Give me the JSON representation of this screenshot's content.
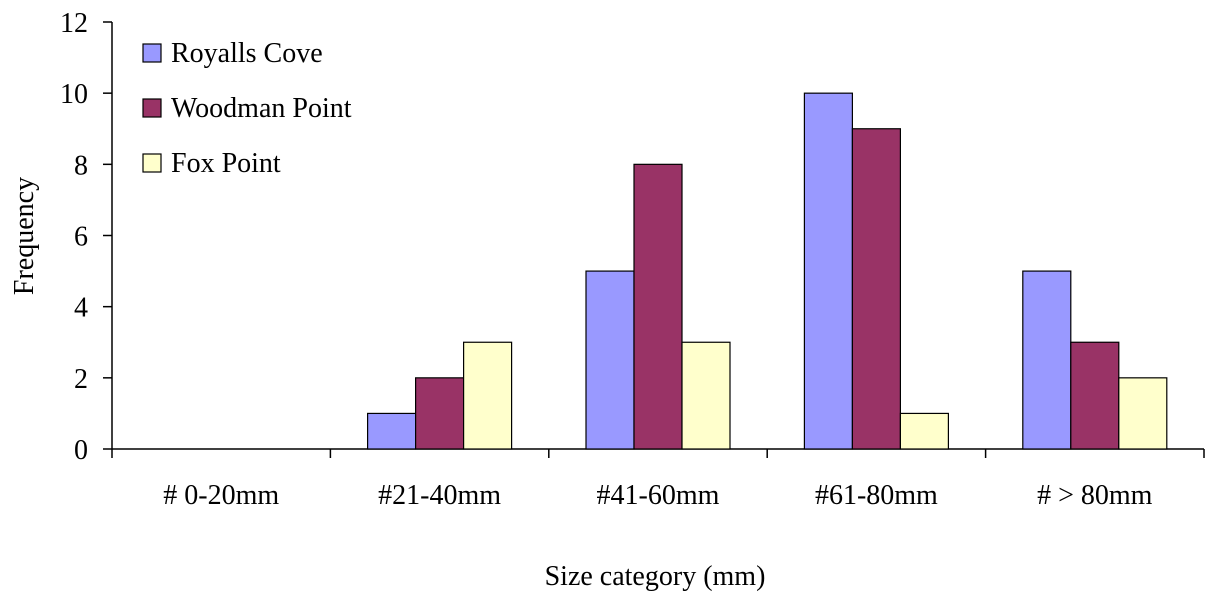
{
  "chart_data": {
    "type": "bar",
    "title": "",
    "xlabel": "Size category (mm)",
    "ylabel": "Frequency",
    "categories": [
      "# 0-20mm",
      "#21-40mm",
      "#41-60mm",
      "#61-80mm",
      "# > 80mm"
    ],
    "series": [
      {
        "name": "Royalls Cove",
        "color": "#9999FF",
        "values": [
          0,
          1,
          5,
          10,
          5
        ]
      },
      {
        "name": "Woodman Point",
        "color": "#993366",
        "values": [
          0,
          2,
          8,
          9,
          3
        ]
      },
      {
        "name": "Fox Point",
        "color": "#FFFFCC",
        "values": [
          0,
          3,
          3,
          1,
          2
        ]
      }
    ],
    "ylim": [
      0,
      12
    ],
    "yticks": [
      0,
      2,
      4,
      6,
      8,
      10,
      12
    ],
    "grid": false,
    "legend": "top-left"
  }
}
